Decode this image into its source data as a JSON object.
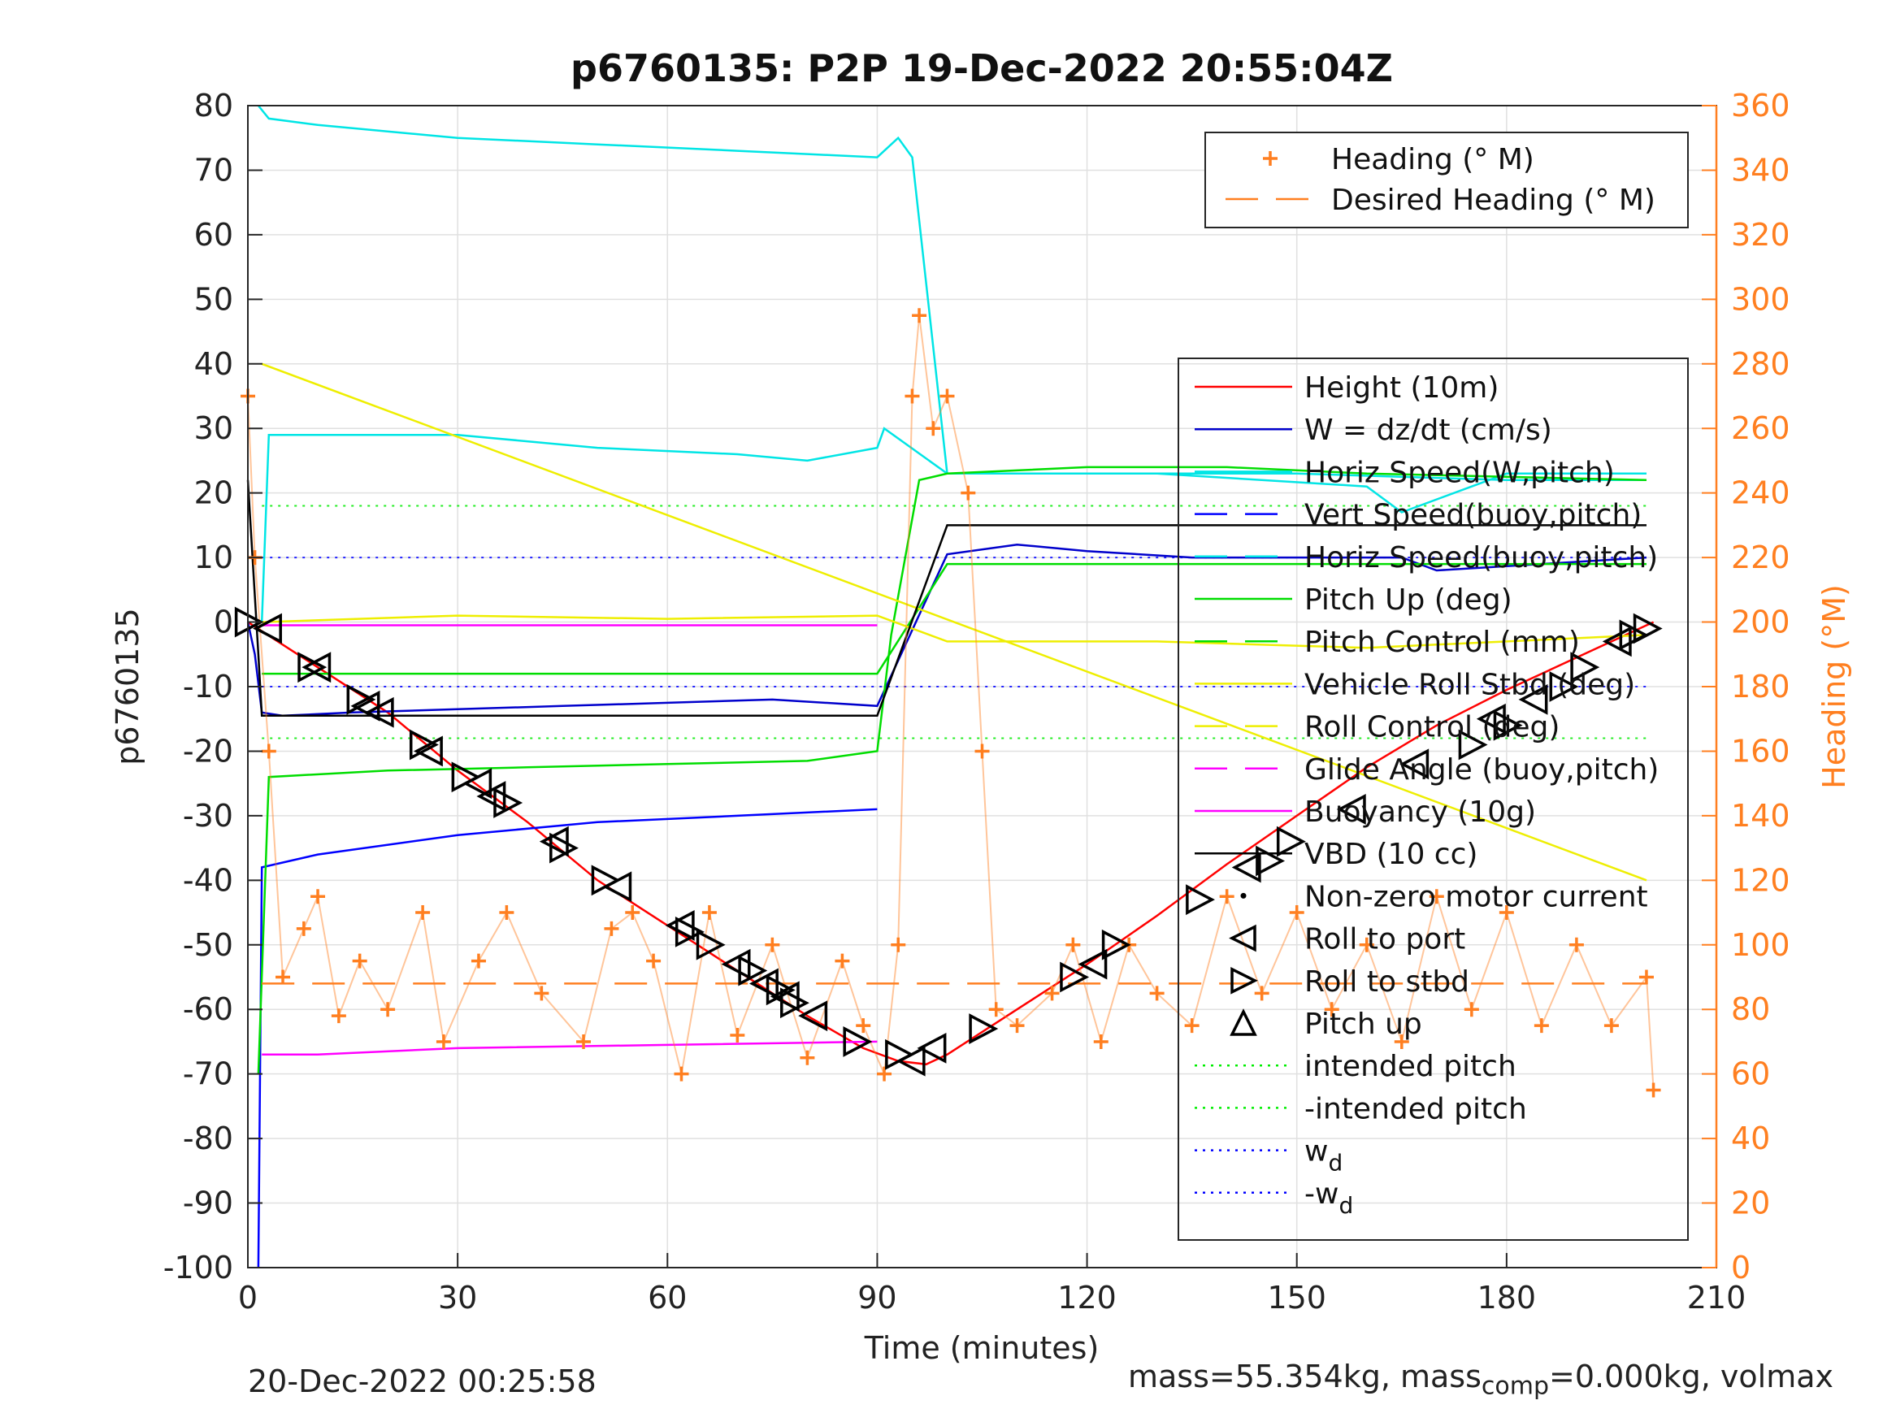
{
  "chart_data": {
    "type": "line",
    "title": "p6760135: P2P 19-Dec-2022 20:55:04Z",
    "xlabel": "Time (minutes)",
    "ylabel_left": "p6760135",
    "ylabel_right": "Heading (°M)",
    "xlim": [
      0,
      210
    ],
    "ylim_left": [
      -100,
      80
    ],
    "ylim_right": [
      0,
      360
    ],
    "x_ticks": [
      0,
      30,
      60,
      90,
      120,
      150,
      180,
      210
    ],
    "y_ticks_left": [
      -100,
      -90,
      -80,
      -70,
      -60,
      -50,
      -40,
      -30,
      -20,
      -10,
      0,
      10,
      20,
      30,
      40,
      50,
      60,
      70,
      80
    ],
    "y_ticks_right": [
      0,
      20,
      40,
      60,
      80,
      100,
      120,
      140,
      160,
      180,
      200,
      220,
      240,
      260,
      280,
      300,
      320,
      340,
      360
    ],
    "grid": true,
    "legend_right_axis": {
      "placement": "top-right",
      "entries": [
        {
          "label": "Heading (° M)",
          "color": "#ff7f20",
          "style": "plus"
        },
        {
          "label": "Desired Heading (° M)",
          "color": "#ff7f20",
          "style": "dash"
        }
      ]
    },
    "legend_left_axis": {
      "placement": "right",
      "entries": [
        {
          "label": "Height (10m)",
          "color": "#ff0000",
          "style": "solid"
        },
        {
          "label": "W = dz/dt (cm/s)",
          "color": "#0000cc",
          "style": "solid"
        },
        {
          "label": "Horiz Speed(W,pitch)",
          "color": "#00e5e5",
          "style": "solid"
        },
        {
          "label": "Vert Speed(buoy,pitch)",
          "color": "#0000ff",
          "style": "dash"
        },
        {
          "label": "Horiz Speed(buoy,pitch)",
          "color": "#00e5e5",
          "style": "dash"
        },
        {
          "label": "Pitch Up (deg)",
          "color": "#00dd00",
          "style": "solid"
        },
        {
          "label": "Pitch Control (mm)",
          "color": "#00dd00",
          "style": "dash"
        },
        {
          "label": "Vehicle Roll Stbd (deg)",
          "color": "#eeee00",
          "style": "solid"
        },
        {
          "label": "Roll Control (deg)",
          "color": "#eeee00",
          "style": "dash"
        },
        {
          "label": "Glide Angle (buoy,pitch)",
          "color": "#ff00ff",
          "style": "dash"
        },
        {
          "label": "Buoyancy (10g)",
          "color": "#ff00ff",
          "style": "solid"
        },
        {
          "label": "VBD (10 cc)",
          "color": "#000000",
          "style": "solid"
        },
        {
          "label": "Non-zero motor current",
          "color": "#000000",
          "style": "dot"
        },
        {
          "label": "Roll to port",
          "color": "#000000",
          "style": "tri-left"
        },
        {
          "label": "Roll to stbd",
          "color": "#000000",
          "style": "tri-right"
        },
        {
          "label": "Pitch up",
          "color": "#000000",
          "style": "tri-up"
        },
        {
          "label": "intended pitch",
          "color": "#00ee00",
          "style": "dotted"
        },
        {
          "label": "-intended pitch",
          "color": "#00ee00",
          "style": "dotted"
        },
        {
          "label": "w",
          "sub": "d",
          "color": "#0000ff",
          "style": "dotted"
        },
        {
          "label": "-w",
          "sub": "d",
          "color": "#0000ff",
          "style": "dotted"
        }
      ]
    },
    "series": [
      {
        "name": "Height (10m)",
        "color": "#ff0000",
        "x": [
          0,
          5,
          10,
          20,
          30,
          40,
          50,
          60,
          70,
          80,
          88,
          93,
          97,
          100,
          110,
          120,
          130,
          140,
          150,
          160,
          170,
          180,
          190,
          200,
          201
        ],
        "y": [
          0,
          -3.5,
          -7,
          -14,
          -23,
          -31,
          -40,
          -47,
          -54,
          -61,
          -66,
          -68,
          -68.5,
          -67,
          -60,
          -53,
          -45.5,
          -37.5,
          -30,
          -22.5,
          -16,
          -10.5,
          -5.5,
          -0.5,
          0
        ]
      },
      {
        "name": "W = dz/dt (cm/s)",
        "color": "#0000cc",
        "x": [
          0,
          1,
          2,
          5,
          15,
          30,
          45,
          60,
          75,
          90,
          100,
          110,
          120,
          135,
          150,
          165,
          170,
          185,
          200
        ],
        "y": [
          0,
          -5,
          -14,
          -14.5,
          -14,
          -13.5,
          -13,
          -12.5,
          -12,
          -13,
          10.5,
          12,
          11,
          10,
          10,
          10,
          8,
          9,
          10
        ]
      },
      {
        "name": "Horiz Speed(W,pitch)",
        "color": "#00e5e5",
        "x": [
          1.5,
          3,
          10,
          30,
          50,
          70,
          80,
          90,
          93,
          95,
          100,
          110,
          130,
          160,
          165,
          180,
          200
        ],
        "y": [
          80,
          78,
          77,
          75,
          74,
          73,
          72.5,
          72,
          75,
          72,
          23,
          23,
          23,
          21,
          17,
          23,
          23
        ]
      },
      {
        "name": "Vert Speed(buoy,pitch)",
        "color": "#0000ff",
        "x": [
          1.5,
          2,
          10,
          30,
          50,
          70,
          90
        ],
        "y": [
          -100,
          -38,
          -36,
          -33,
          -31,
          -30,
          -29
        ]
      },
      {
        "name": "Horiz Speed(buoy,pitch)",
        "color": "#00e5e5",
        "x": [
          2,
          3,
          10,
          30,
          50,
          70,
          80,
          90,
          91,
          100,
          120,
          150,
          180,
          200
        ],
        "y": [
          0,
          29,
          29,
          29,
          27,
          26,
          25,
          27,
          30,
          23,
          23,
          23,
          22,
          22
        ]
      },
      {
        "name": "Pitch Up (deg)",
        "color": "#00dd00",
        "x": [
          1.5,
          3,
          20,
          40,
          60,
          80,
          90,
          92,
          96,
          100,
          120,
          140,
          160,
          200
        ],
        "y": [
          -70,
          -24,
          -23,
          -22.5,
          -22,
          -21.5,
          -20,
          -2,
          22,
          23,
          24,
          24,
          23,
          22
        ]
      },
      {
        "name": "Pitch Control (mm)",
        "color": "#00dd00",
        "x": [
          2,
          90,
          100,
          200
        ],
        "y": [
          -8,
          -8,
          9,
          9
        ]
      },
      {
        "name": "Vehicle Roll Stbd (deg)",
        "color": "#eeee00",
        "x": [
          2,
          30,
          60,
          90,
          100,
          130,
          160,
          200
        ],
        "y": [
          0,
          1,
          0.5,
          1,
          -3,
          -3,
          -4,
          -2
        ]
      },
      {
        "name": "Roll Control (deg)",
        "color": "#eeee00",
        "x": [
          2,
          200
        ],
        "y": [
          40,
          -40
        ]
      },
      {
        "name": "Glide Angle (buoy,pitch)",
        "color": "#ff00ff",
        "x": [
          2,
          90
        ],
        "y": [
          -0.5,
          -0.5
        ]
      },
      {
        "name": "Buoyancy (10g)",
        "color": "#ff00ff",
        "x": [
          2,
          10,
          30,
          60,
          90
        ],
        "y": [
          -67,
          -67,
          -66,
          -65.5,
          -65
        ]
      },
      {
        "name": "VBD (10 cc)",
        "color": "#000000",
        "x": [
          0,
          1.5,
          2,
          90,
          100,
          165,
          200
        ],
        "y": [
          22,
          -5,
          -14.5,
          -14.5,
          15,
          15,
          15
        ]
      },
      {
        "name": "Heading (° M)",
        "color": "#ff7f20",
        "axis": "right",
        "x": [
          0,
          1,
          3,
          5,
          8,
          10,
          13,
          16,
          20,
          25,
          28,
          33,
          37,
          42,
          48,
          52,
          55,
          58,
          62,
          66,
          70,
          75,
          80,
          85,
          88,
          91,
          93,
          95,
          96,
          98,
          100,
          103,
          105,
          107,
          110,
          115,
          118,
          122,
          126,
          130,
          135,
          140,
          145,
          150,
          155,
          160,
          165,
          170,
          175,
          180,
          185,
          190,
          195,
          200,
          201
        ],
        "y": [
          270,
          220,
          160,
          90,
          105,
          115,
          78,
          95,
          80,
          110,
          70,
          95,
          110,
          85,
          70,
          105,
          110,
          95,
          60,
          110,
          72,
          100,
          65,
          95,
          75,
          60,
          100,
          270,
          295,
          260,
          270,
          240,
          160,
          80,
          75,
          85,
          100,
          70,
          100,
          85,
          75,
          115,
          85,
          110,
          80,
          100,
          70,
          115,
          80,
          110,
          75,
          100,
          75,
          90,
          55
        ]
      },
      {
        "name": "Desired Heading (° M)",
        "color": "#ff7f20",
        "axis": "right",
        "style": "dash",
        "x": [
          2,
          200
        ],
        "y": [
          88,
          88
        ]
      }
    ],
    "reference_lines": [
      {
        "label": "intended pitch",
        "y": 18
      },
      {
        "label": "-intended pitch",
        "y": -18
      },
      {
        "label": "w_d",
        "y": 10
      },
      {
        "label": "-w_d",
        "y": -10
      }
    ],
    "roll_to_port": {
      "x": [
        3,
        10,
        17,
        19,
        26,
        33,
        35,
        44,
        53,
        62,
        70,
        74,
        77,
        81,
        95,
        98,
        121,
        143,
        158,
        167,
        178,
        184,
        196
      ],
      "y": [
        -1,
        -7,
        -13,
        -14,
        -20,
        -25,
        -27,
        -34,
        -41,
        -47,
        -53,
        -56,
        -58,
        -61,
        -68,
        -66,
        -53,
        -38,
        -29,
        -22,
        -15,
        -12,
        -3
      ]
    },
    "roll_to_stbd": {
      "x": [
        0,
        9,
        16,
        25,
        31,
        37,
        45,
        51,
        63,
        66,
        72,
        76,
        78,
        87,
        93,
        105,
        118,
        124,
        136,
        146,
        149,
        175,
        180,
        188,
        191,
        198,
        200
      ],
      "y": [
        0,
        -7,
        -12,
        -19,
        -24,
        -28,
        -35,
        -40,
        -48,
        -50,
        -54,
        -57,
        -59,
        -65,
        -67,
        -63,
        -55,
        -50,
        -43,
        -37,
        -34,
        -19,
        -16,
        -10,
        -7,
        -2,
        -1
      ]
    }
  },
  "footer": {
    "date": "20-Dec-2022 00:25:58",
    "mass_text_a": "mass=55.354kg, mass",
    "mass_sub": "comp",
    "mass_text_b": "=0.000kg, volmax"
  },
  "colors": {
    "heading": "#ff7f20",
    "axis_right": "#ff7f20"
  }
}
